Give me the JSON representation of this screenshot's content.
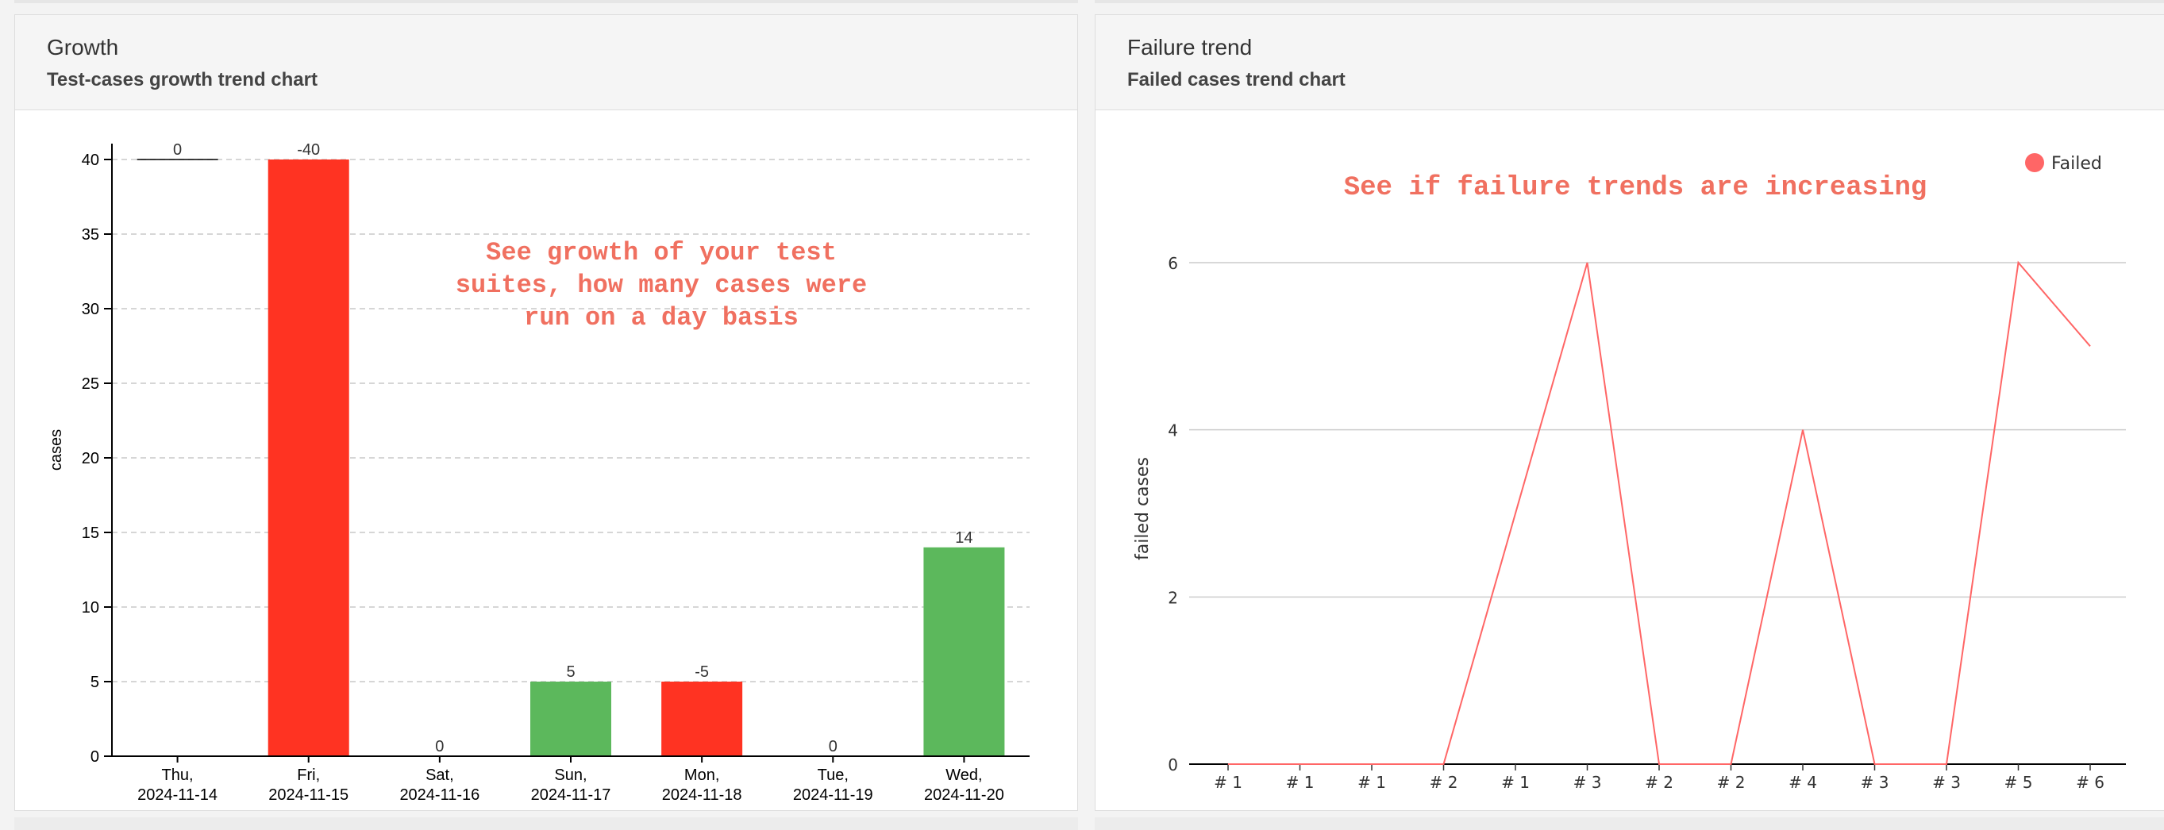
{
  "growth_panel": {
    "title": "Growth",
    "subtitle": "Test-cases growth trend chart",
    "annotation_lines": [
      "See growth of your test",
      "suites, how many cases were",
      "run on a day basis"
    ]
  },
  "failure_panel": {
    "title": "Failure trend",
    "subtitle": "Failed cases trend chart",
    "annotation": "See if failure trends are increasing"
  },
  "colors": {
    "negative": "#ff3322",
    "positive": "#5cb85c",
    "failed_line": "#ff6666",
    "annotation": "#f07060"
  },
  "chart_data": [
    {
      "type": "bar",
      "ylabel": "cases",
      "xlabel": "",
      "ylim": [
        0,
        40
      ],
      "yticks": [
        0,
        5,
        10,
        15,
        20,
        25,
        30,
        35,
        40
      ],
      "grid": true,
      "categories": [
        [
          "Thu,",
          "2024-11-14"
        ],
        [
          "Fri,",
          "2024-11-15"
        ],
        [
          "Sat,",
          "2024-11-16"
        ],
        [
          "Sun,",
          "2024-11-17"
        ],
        [
          "Mon,",
          "2024-11-18"
        ],
        [
          "Tue,",
          "2024-11-19"
        ],
        [
          "Wed,",
          "2024-11-20"
        ]
      ],
      "values": [
        0,
        -40,
        0,
        5,
        -5,
        0,
        14
      ],
      "data_labels": [
        "0",
        "-40",
        "0",
        "5",
        "-5",
        "0",
        "14"
      ],
      "first_bar_level": 40
    },
    {
      "type": "line",
      "ylabel": "failed cases",
      "xlabel": "",
      "ylim": [
        0,
        6
      ],
      "yticks": [
        0,
        2,
        4,
        6
      ],
      "grid": true,
      "legend": {
        "placement": "top-right",
        "entries": [
          "Failed"
        ]
      },
      "x": [
        "# 1",
        "# 1",
        "# 1",
        "# 2",
        "# 1",
        "# 3",
        "# 2",
        "# 2",
        "# 4",
        "# 3",
        "# 3",
        "# 5",
        "# 6"
      ],
      "series": [
        {
          "name": "Failed",
          "values": [
            0,
            0,
            0,
            0,
            3,
            6,
            0,
            0,
            4,
            0,
            0,
            6,
            5
          ]
        }
      ]
    }
  ]
}
